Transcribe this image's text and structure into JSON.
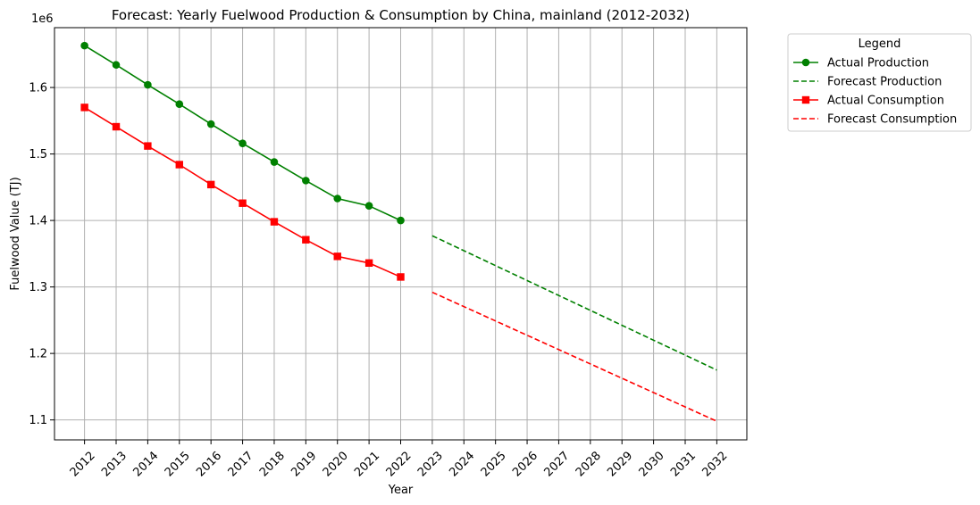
{
  "chart_data": {
    "type": "line",
    "title": "Forecast: Yearly Fuelwood Production & Consumption by China, mainland (2012-2032)",
    "xlabel": "Year",
    "ylabel": "Fuelwood Value (TJ)",
    "y_offset_label": "1e6",
    "ylim": [
      1.07,
      1.69
    ],
    "y_ticks": [
      1.1,
      1.2,
      1.3,
      1.4,
      1.5,
      1.6
    ],
    "y_tick_labels": [
      "1.1",
      "1.2",
      "1.3",
      "1.4",
      "1.5",
      "1.6"
    ],
    "x_ticks": [
      2012,
      2013,
      2014,
      2015,
      2016,
      2017,
      2018,
      2019,
      2020,
      2021,
      2022,
      2023,
      2024,
      2025,
      2026,
      2027,
      2028,
      2029,
      2030,
      2031,
      2032
    ],
    "x_tick_labels": [
      "2012",
      "2013",
      "2014",
      "2015",
      "2016",
      "2017",
      "2018",
      "2019",
      "2020",
      "2021",
      "2022",
      "2023",
      "2024",
      "2025",
      "2026",
      "2027",
      "2028",
      "2029",
      "2030",
      "2031",
      "2032"
    ],
    "grid": true,
    "legend": {
      "title": "Legend",
      "placement": "outside-top-right"
    },
    "series": [
      {
        "name": "Actual Production",
        "color": "#008000",
        "style": "solid",
        "marker": "circle",
        "x": [
          2012,
          2013,
          2014,
          2015,
          2016,
          2017,
          2018,
          2019,
          2020,
          2021,
          2022
        ],
        "values": [
          1.663,
          1.634,
          1.604,
          1.575,
          1.545,
          1.516,
          1.488,
          1.46,
          1.433,
          1.422,
          1.4
        ]
      },
      {
        "name": "Forecast Production",
        "color": "#008000",
        "style": "dashed",
        "marker": "none",
        "x": [
          2023,
          2032
        ],
        "values": [
          1.377,
          1.175
        ]
      },
      {
        "name": "Actual Consumption",
        "color": "#ff0000",
        "style": "solid",
        "marker": "square",
        "x": [
          2012,
          2013,
          2014,
          2015,
          2016,
          2017,
          2018,
          2019,
          2020,
          2021,
          2022
        ],
        "values": [
          1.57,
          1.541,
          1.512,
          1.484,
          1.454,
          1.426,
          1.398,
          1.371,
          1.346,
          1.336,
          1.315
        ]
      },
      {
        "name": "Forecast Consumption",
        "color": "#ff0000",
        "style": "dashed",
        "marker": "none",
        "x": [
          2023,
          2032
        ],
        "values": [
          1.292,
          1.098
        ]
      }
    ]
  }
}
